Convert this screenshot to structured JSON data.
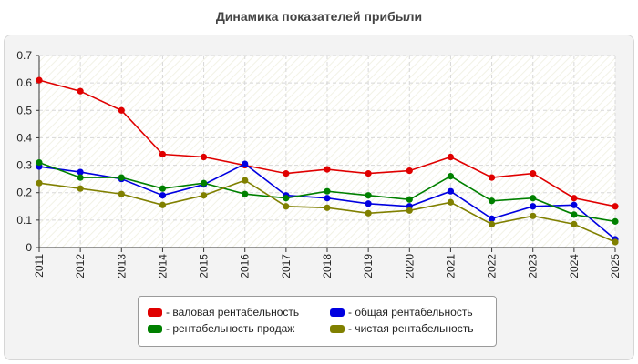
{
  "chart_data": {
    "type": "line",
    "title": "Динамика показателей прибыли",
    "xlabel": "",
    "ylabel": "",
    "ylim": [
      0,
      0.7
    ],
    "y_ticks": [
      "0",
      "0.1",
      "0.2",
      "0.3",
      "0.4",
      "0.5",
      "0.6",
      "0.7"
    ],
    "grid": true,
    "legend_position": "bottom",
    "categories": [
      "2011",
      "2012",
      "2013",
      "2014",
      "2015",
      "2016",
      "2017",
      "2018",
      "2019",
      "2020",
      "2021",
      "2022",
      "2023",
      "2024",
      "2025"
    ],
    "series": [
      {
        "name": "- валовая рентабельность",
        "color": "#e00000",
        "values": [
          0.61,
          0.57,
          0.5,
          0.34,
          0.33,
          0.3,
          0.27,
          0.285,
          0.27,
          0.28,
          0.33,
          0.255,
          0.27,
          0.18,
          0.15
        ]
      },
      {
        "name": "- общая рентабельность",
        "color": "#0000e0",
        "values": [
          0.295,
          0.275,
          0.25,
          0.19,
          0.23,
          0.305,
          0.19,
          0.18,
          0.16,
          0.15,
          0.205,
          0.105,
          0.15,
          0.155,
          0.03
        ]
      },
      {
        "name": "- рентабельность продаж",
        "color": "#008000",
        "values": [
          0.31,
          0.255,
          0.255,
          0.215,
          0.235,
          0.195,
          0.18,
          0.205,
          0.19,
          0.175,
          0.26,
          0.17,
          0.18,
          0.12,
          0.095
        ]
      },
      {
        "name": "- чистая рентабельность",
        "color": "#808000",
        "values": [
          0.235,
          0.215,
          0.195,
          0.155,
          0.19,
          0.245,
          0.15,
          0.145,
          0.125,
          0.135,
          0.165,
          0.085,
          0.115,
          0.085,
          0.02
        ]
      }
    ]
  }
}
